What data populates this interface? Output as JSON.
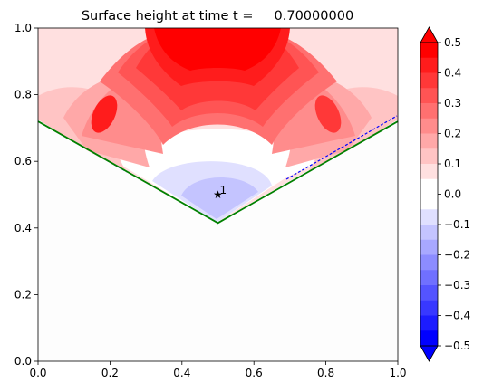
{
  "chart_data": {
    "type": "contour",
    "title": "Surface height at time t =     0.70000000",
    "xlabel": "",
    "ylabel": "",
    "xlim": [
      0,
      1
    ],
    "ylim": [
      0,
      1
    ],
    "xticks": [
      "0.0",
      "0.2",
      "0.4",
      "0.6",
      "0.8",
      "1.0"
    ],
    "yticks": [
      "0.0",
      "0.2",
      "0.4",
      "0.6",
      "0.8",
      "1.0"
    ],
    "grid": false,
    "shoreline": {
      "color": "#008000",
      "points": [
        [
          0.0,
          0.72
        ],
        [
          0.5,
          0.415
        ],
        [
          1.0,
          0.72
        ]
      ]
    },
    "gauge": {
      "label": "1",
      "x": 0.5,
      "y": 0.5
    },
    "colorbar": {
      "min": -0.5,
      "max": 0.5,
      "ticks": [
        "0.5",
        "0.4",
        "0.3",
        "0.2",
        "0.1",
        "0.0",
        "−0.1",
        "−0.2",
        "−0.3",
        "−0.4",
        "−0.5"
      ],
      "levels": [
        {
          "from": 0.45,
          "to": 0.5,
          "color": "#ff0000"
        },
        {
          "from": 0.4,
          "to": 0.45,
          "color": "#ff1c1c"
        },
        {
          "from": 0.35,
          "to": 0.4,
          "color": "#ff3838"
        },
        {
          "from": 0.3,
          "to": 0.35,
          "color": "#ff5454"
        },
        {
          "from": 0.25,
          "to": 0.3,
          "color": "#ff7070"
        },
        {
          "from": 0.2,
          "to": 0.25,
          "color": "#ff8c8c"
        },
        {
          "from": 0.15,
          "to": 0.2,
          "color": "#ffa8a8"
        },
        {
          "from": 0.1,
          "to": 0.15,
          "color": "#ffc4c4"
        },
        {
          "from": 0.05,
          "to": 0.1,
          "color": "#ffe0e0"
        },
        {
          "from": 0.0,
          "to": 0.05,
          "color": "#ffffff"
        },
        {
          "from": -0.05,
          "to": 0.0,
          "color": "#ffffff"
        },
        {
          "from": -0.1,
          "to": -0.05,
          "color": "#e0e0ff"
        },
        {
          "from": -0.15,
          "to": -0.1,
          "color": "#c4c4ff"
        },
        {
          "from": -0.2,
          "to": -0.15,
          "color": "#a8a8ff"
        },
        {
          "from": -0.25,
          "to": -0.2,
          "color": "#8c8cff"
        },
        {
          "from": -0.3,
          "to": -0.25,
          "color": "#7070ff"
        },
        {
          "from": -0.35,
          "to": -0.3,
          "color": "#5454ff"
        },
        {
          "from": -0.4,
          "to": -0.35,
          "color": "#3838ff"
        },
        {
          "from": -0.45,
          "to": -0.4,
          "color": "#1c1cff"
        },
        {
          "from": -0.5,
          "to": -0.45,
          "color": "#0000ff"
        }
      ],
      "extend": "both"
    }
  }
}
